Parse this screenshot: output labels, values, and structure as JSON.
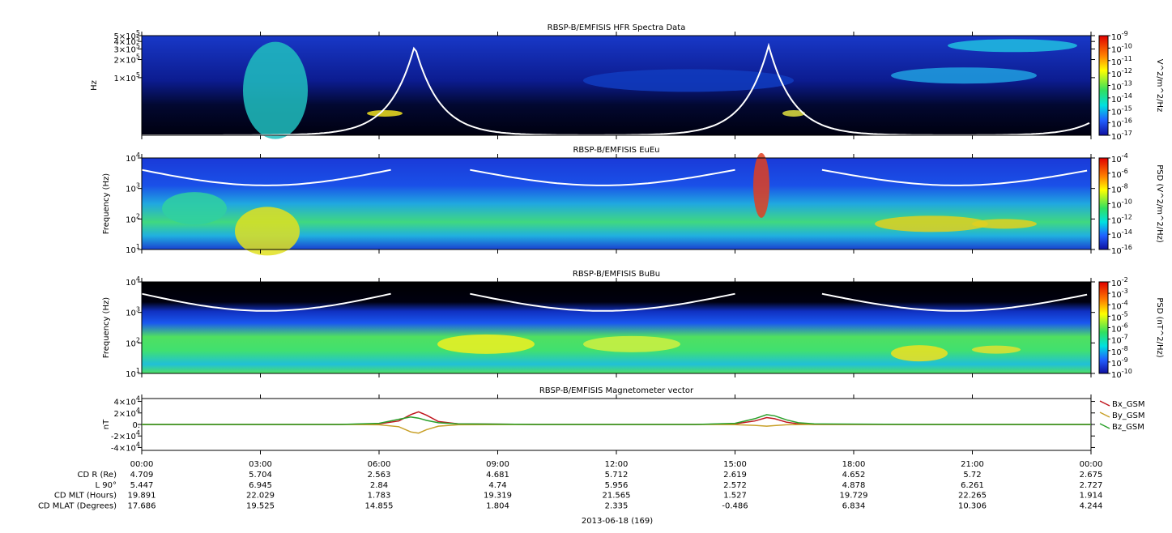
{
  "chart_data": [
    {
      "type": "spectrogram",
      "title": "RBSP-B/EMFISIS  HFR Spectra Data",
      "ylabel": "Hz",
      "log_y": true,
      "ylim": [
        11000,
        500000
      ],
      "yticks": [
        {
          "value": 100000,
          "label": "1×10^5"
        },
        {
          "value": 200000,
          "label": "2×10^5"
        },
        {
          "value": 300000,
          "label": "3×10^5"
        },
        {
          "value": 400000,
          "label": "4×10^5"
        },
        {
          "value": 500000,
          "label": "5×10^5"
        }
      ],
      "colorbar_label": "V^2/m^2/Hz",
      "zlim": [
        1e-17,
        1e-09
      ],
      "zticks": [
        {
          "value": 1e-09,
          "label": "10^-9"
        },
        {
          "value": 1e-10,
          "label": "10^-10"
        },
        {
          "value": 1e-11,
          "label": "10^-11"
        },
        {
          "value": 1e-12,
          "label": "10^-12"
        },
        {
          "value": 1e-13,
          "label": "10^-13"
        },
        {
          "value": 1e-14,
          "label": "10^-14"
        },
        {
          "value": 1e-15,
          "label": "10^-15"
        },
        {
          "value": 1e-16,
          "label": "10^-16"
        },
        {
          "value": 1e-17,
          "label": "10^-17"
        }
      ]
    },
    {
      "type": "spectrogram",
      "title": "RBSP-B/EMFISIS  EuEu",
      "ylabel": "Frequency (Hz)",
      "log_y": true,
      "ylim": [
        10,
        10000
      ],
      "yticks": [
        {
          "value": 10,
          "label": "10^1"
        },
        {
          "value": 100,
          "label": "10^2"
        },
        {
          "value": 1000,
          "label": "10^3"
        },
        {
          "value": 10000,
          "label": "10^4"
        }
      ],
      "colorbar_label": "PSD (V^2/m^2/Hz)",
      "zlim": [
        1e-16,
        0.0001
      ],
      "zticks": [
        {
          "value": 0.0001,
          "label": "10^-4"
        },
        {
          "value": 1e-06,
          "label": "10^-6"
        },
        {
          "value": 1e-08,
          "label": "10^-8"
        },
        {
          "value": 1e-10,
          "label": "10^-10"
        },
        {
          "value": 1e-12,
          "label": "10^-12"
        },
        {
          "value": 1e-14,
          "label": "10^-14"
        },
        {
          "value": 1e-16,
          "label": "10^-16"
        }
      ]
    },
    {
      "type": "spectrogram",
      "title": "RBSP-B/EMFISIS  BuBu",
      "ylabel": "Frequency (Hz)",
      "log_y": true,
      "ylim": [
        10,
        10000
      ],
      "yticks": [
        {
          "value": 10,
          "label": "10^1"
        },
        {
          "value": 100,
          "label": "10^2"
        },
        {
          "value": 1000,
          "label": "10^3"
        },
        {
          "value": 10000,
          "label": "10^4"
        }
      ],
      "colorbar_label": "PSD (nT^2/Hz)",
      "zlim": [
        1e-10,
        0.01
      ],
      "zticks": [
        {
          "value": 0.01,
          "label": "10^-2"
        },
        {
          "value": 0.001,
          "label": "10^-3"
        },
        {
          "value": 0.0001,
          "label": "10^-4"
        },
        {
          "value": 1e-05,
          "label": "10^-5"
        },
        {
          "value": 1e-06,
          "label": "10^-6"
        },
        {
          "value": 1e-07,
          "label": "10^-7"
        },
        {
          "value": 1e-08,
          "label": "10^-8"
        },
        {
          "value": 1e-09,
          "label": "10^-9"
        },
        {
          "value": 1e-10,
          "label": "10^-10"
        }
      ]
    },
    {
      "type": "line",
      "title": "RBSP-B/EMFISIS  Magnetometer vector",
      "ylabel": "nT",
      "xlim": [
        0,
        24
      ],
      "xticks": [
        {
          "value": 0,
          "label": "00:00"
        },
        {
          "value": 3,
          "label": "03:00"
        },
        {
          "value": 6,
          "label": "06:00"
        },
        {
          "value": 9,
          "label": "09:00"
        },
        {
          "value": 12,
          "label": "12:00"
        },
        {
          "value": 15,
          "label": "15:00"
        },
        {
          "value": 18,
          "label": "18:00"
        },
        {
          "value": 21,
          "label": "21:00"
        },
        {
          "value": 24,
          "label": "00:00"
        }
      ],
      "xlabel": "2013-06-18 (169)",
      "ylim": [
        -45000,
        45000
      ],
      "yticks": [
        {
          "value": 40000,
          "label": "4×10^4"
        },
        {
          "value": 20000,
          "label": "2×10^4"
        },
        {
          "value": 0,
          "label": "0."
        },
        {
          "value": -20000,
          "label": "-2×10^4"
        },
        {
          "value": -40000,
          "label": "-4×10^4"
        }
      ],
      "x": [
        0,
        5,
        6,
        6.5,
        6.8,
        7,
        7.2,
        7.5,
        8,
        10,
        14,
        15,
        15.5,
        15.8,
        16,
        16.3,
        16.6,
        17,
        20,
        24
      ],
      "series": [
        {
          "name": "Bx_GSM",
          "color": "#c0161e",
          "values": [
            0,
            0,
            1000,
            6000,
            17000,
            22000,
            16000,
            5000,
            1000,
            0,
            0,
            1000,
            6000,
            12000,
            10000,
            4000,
            1000,
            0,
            0,
            0
          ]
        },
        {
          "name": "By_GSM",
          "color": "#c8a028",
          "values": [
            0,
            0,
            -500,
            -4000,
            -13000,
            -15000,
            -9000,
            -3000,
            -500,
            0,
            0,
            -300,
            -1500,
            -3000,
            -2000,
            -600,
            -200,
            0,
            0,
            0
          ]
        },
        {
          "name": "Bz_GSM",
          "color": "#2aa02a",
          "values": [
            0,
            0,
            2000,
            9000,
            13000,
            11000,
            7000,
            3000,
            1000,
            0,
            0,
            2000,
            10000,
            17000,
            15000,
            8000,
            3000,
            1000,
            0,
            0
          ]
        }
      ]
    }
  ],
  "ephemeris": {
    "row_labels": [
      "CD R (Re)",
      "L 90°",
      "CD MLT (Hours)",
      "CD MLAT (Degrees)"
    ],
    "rows": [
      [
        4.709,
        5.704,
        2.563,
        4.681,
        5.712,
        2.619,
        4.652,
        5.72,
        2.675
      ],
      [
        5.447,
        6.945,
        2.84,
        4.74,
        5.956,
        2.572,
        4.878,
        6.261,
        2.727
      ],
      [
        19.891,
        22.029,
        1.783,
        19.319,
        21.565,
        1.527,
        19.729,
        22.265,
        1.914
      ],
      [
        17.686,
        19.525,
        14.855,
        1.804,
        2.335,
        -0.486,
        6.834,
        10.306,
        4.244
      ]
    ]
  }
}
